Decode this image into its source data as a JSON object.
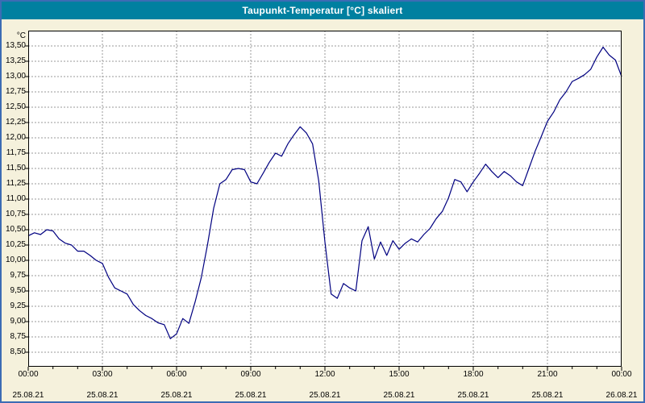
{
  "window": {
    "title": "Taupunkt-Temperatur [°C] skaliert"
  },
  "colors": {
    "title_bar_bg": "#0080A0",
    "title_text": "#FFFFFF",
    "chart_bg": "#F5F1DC",
    "plot_bg": "#FFFFFF",
    "line": "#000080",
    "grid": "#9A9A9A",
    "frame_border": "#3C6CB4"
  },
  "chart_data": {
    "type": "line",
    "title": "Taupunkt-Temperatur [°C] skaliert",
    "ylabel": "°C",
    "ylim": [
      8.5,
      13.5
    ],
    "y_tick_step": 0.25,
    "y_tick_labels": [
      "13,50",
      "13,25",
      "13,00",
      "12,75",
      "12,50",
      "12,25",
      "12,00",
      "11,75",
      "11,50",
      "11,25",
      "11,00",
      "10,75",
      "10,50",
      "10,25",
      "10,00",
      "9,75",
      "9,50",
      "9,25",
      "9,00",
      "8,75",
      "8,50"
    ],
    "x_range_hours": [
      0,
      24
    ],
    "x_tick_interval_hours": 3,
    "x_ticks": [
      {
        "time": "00:00",
        "date": "25.08.21"
      },
      {
        "time": "03:00",
        "date": "25.08.21"
      },
      {
        "time": "06:00",
        "date": "25.08.21"
      },
      {
        "time": "09:00",
        "date": "25.08.21"
      },
      {
        "time": "12:00",
        "date": "25.08.21"
      },
      {
        "time": "15:00",
        "date": "25.08.21"
      },
      {
        "time": "18:00",
        "date": "25.08.21"
      },
      {
        "time": "21:00",
        "date": "25.08.21"
      },
      {
        "time": "00:00",
        "date": "26.08.21"
      }
    ],
    "x_start_hour": 0,
    "x_step_hours": 0.25,
    "values": [
      10.4,
      10.45,
      10.42,
      10.5,
      10.48,
      10.35,
      10.28,
      10.25,
      10.15,
      10.15,
      10.08,
      10.0,
      9.95,
      9.72,
      9.55,
      9.5,
      9.45,
      9.28,
      9.18,
      9.1,
      9.05,
      8.98,
      8.95,
      8.72,
      8.8,
      9.05,
      8.97,
      9.32,
      9.72,
      10.25,
      10.85,
      11.25,
      11.32,
      11.48,
      11.5,
      11.48,
      11.28,
      11.25,
      11.42,
      11.6,
      11.75,
      11.7,
      11.9,
      12.05,
      12.18,
      12.08,
      11.9,
      11.3,
      10.3,
      9.45,
      9.38,
      9.62,
      9.55,
      9.5,
      10.32,
      10.55,
      10.02,
      10.3,
      10.08,
      10.32,
      10.18,
      10.28,
      10.35,
      10.3,
      10.42,
      10.52,
      10.68,
      10.8,
      11.02,
      11.32,
      11.28,
      11.12,
      11.28,
      11.42,
      11.57,
      11.45,
      11.35,
      11.45,
      11.38,
      11.28,
      11.22,
      11.5,
      11.78,
      12.02,
      12.27,
      12.42,
      12.62,
      12.75,
      12.92,
      12.97,
      13.03,
      13.12,
      13.32,
      13.48,
      13.35,
      13.27,
      13.0
    ],
    "grid": true,
    "legend": false
  }
}
